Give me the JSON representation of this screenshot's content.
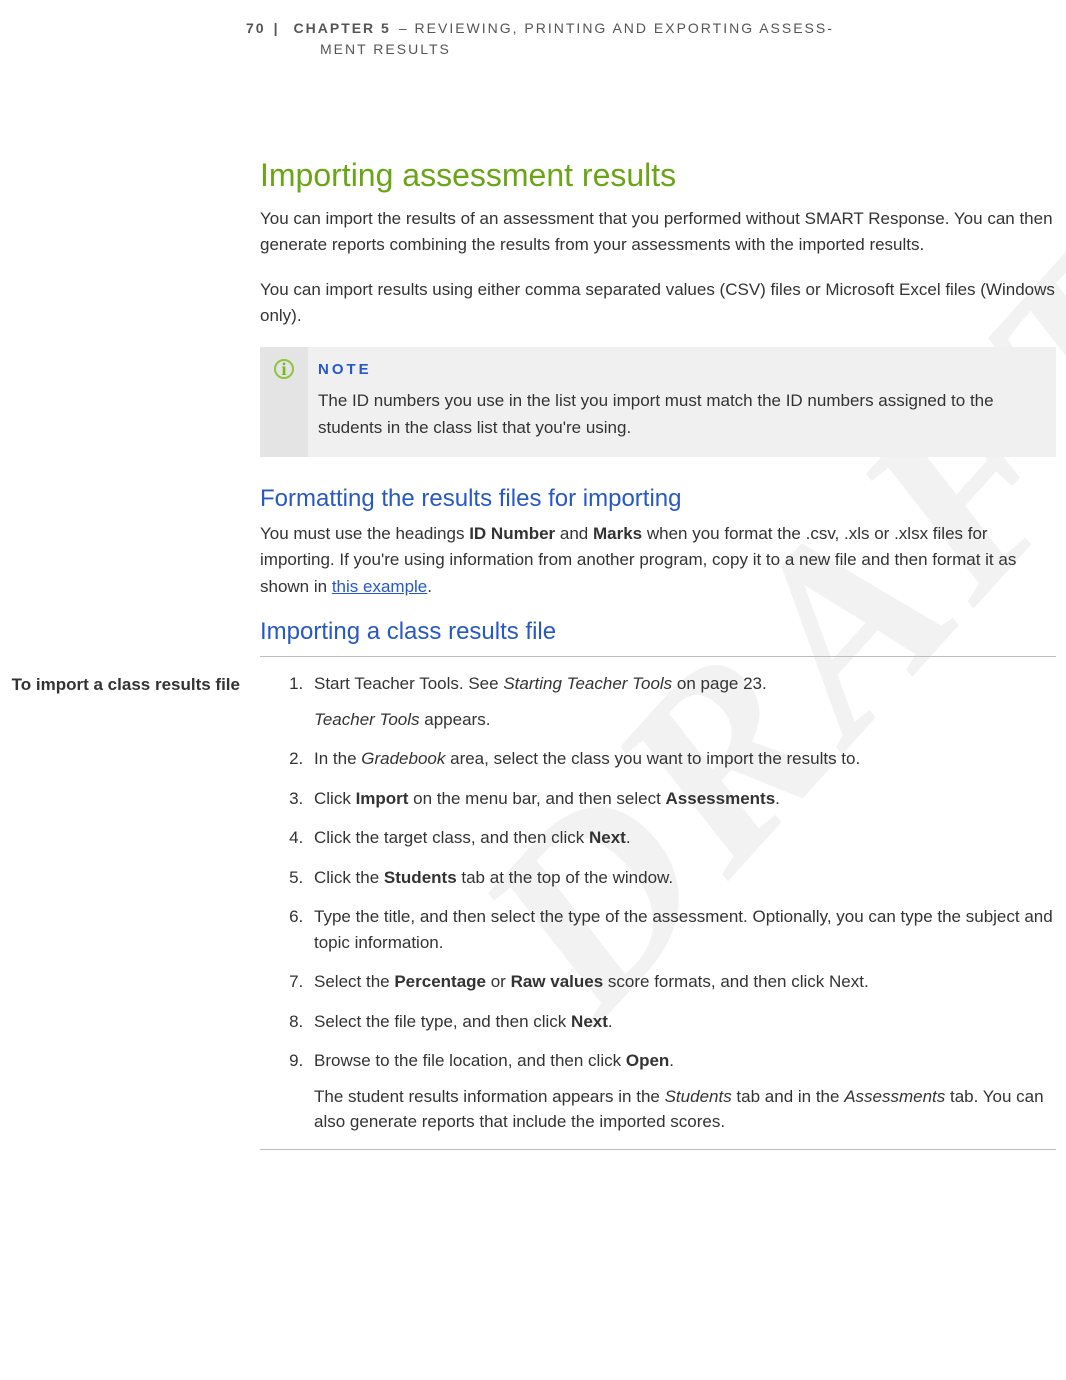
{
  "header": {
    "page_number": "70",
    "separator": "|",
    "chapter_label": "CHAPTER 5",
    "chapter_title_line1": "– REVIEWING, PRINTING AND EXPORTING ASSESS-",
    "chapter_title_line2": "MENT RESULTS"
  },
  "watermark": "DRAFT",
  "heading1": "Importing assessment results",
  "intro_para1": "You can import the results of an assessment that you performed without SMART Response. You can then generate reports combining the results from your assessments with the imported results.",
  "intro_para2": "You can import results using either comma separated values (CSV) files or Microsoft Excel files (Windows only).",
  "note": {
    "icon": "i",
    "title": "NOTE",
    "text": "The ID numbers you use in the list you import must match the ID numbers assigned to the students in the class list that you're using."
  },
  "section2": {
    "heading": "Formatting the results files for importing",
    "text_pre": "You must use the headings ",
    "bold1": "ID Number",
    "text_mid1": " and ",
    "bold2": "Marks",
    "text_mid2": " when you format the .csv, .xls or .xlsx files for importing. If you're using information from another program, copy it to a new file and then format it as shown in ",
    "link": "this example",
    "text_post": "."
  },
  "section3": {
    "heading": "Importing a class results file",
    "side_label": "To import a class results file",
    "steps": {
      "s1_pre": "Start Teacher Tools. See ",
      "s1_italic": "Starting Teacher Tools",
      "s1_post": " on page 23.",
      "s1_sub_italic": "Teacher Tools",
      "s1_sub_post": " appears.",
      "s2_pre": "In the ",
      "s2_italic": "Gradebook",
      "s2_post": " area, select the class you want to import the results to.",
      "s3_pre": "Click ",
      "s3_bold1": "Import",
      "s3_mid": " on the menu bar, and then select ",
      "s3_bold2": "Assessments",
      "s3_post": ".",
      "s4_pre": "Click the target class, and then click ",
      "s4_bold": "Next",
      "s4_post": ".",
      "s5_pre": "Click the ",
      "s5_bold": "Students",
      "s5_post": " tab at the top of the window.",
      "s6": "Type the title, and then select the type of the assessment. Optionally, you can type the subject and topic information.",
      "s7_pre": "Select the ",
      "s7_bold1": "Percentage",
      "s7_mid": " or ",
      "s7_bold2": "Raw values",
      "s7_post": " score formats, and then click Next.",
      "s8_pre": "Select the file type, and then click ",
      "s8_bold": "Next",
      "s8_post": ".",
      "s9_pre": "Browse to the file location, and then click ",
      "s9_bold": "Open",
      "s9_post": ".",
      "s9_sub_pre": "The student results information appears in the ",
      "s9_sub_italic1": "Students",
      "s9_sub_mid": " tab and in the ",
      "s9_sub_italic2": "Assessments",
      "s9_sub_post": " tab. You can also generate reports that include the imported scores."
    }
  }
}
